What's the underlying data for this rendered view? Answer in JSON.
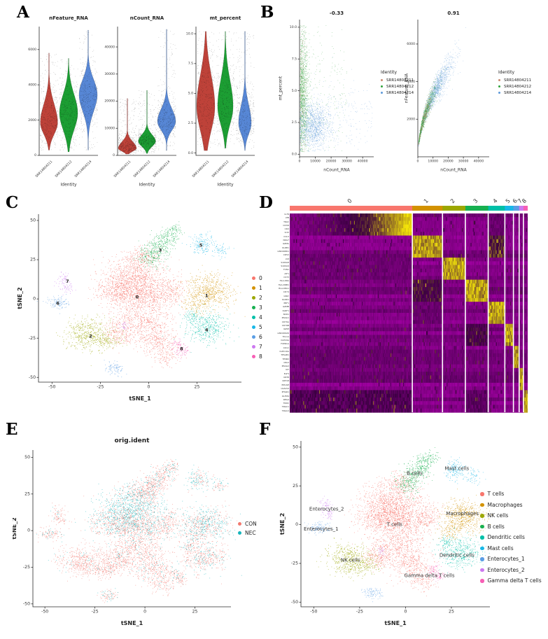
{
  "panel_labels": [
    "A",
    "B",
    "C",
    "D",
    "E",
    "F"
  ],
  "chart_data": [
    {
      "type": "violin",
      "panel": "A",
      "xlabel": "Identity",
      "samples": [
        "SRR14804211",
        "SRR14804212",
        "SRR14804214"
      ],
      "colors": [
        "#BE4239",
        "#1C9E33",
        "#5787D6"
      ],
      "plots": [
        {
          "title": "nFeature_RNA",
          "ylim": [
            0,
            7300
          ],
          "yticks": [
            {
              "v": 0,
              "l": "0"
            },
            {
              "v": 2000,
              "l": "2000"
            },
            {
              "v": 4000,
              "l": "4000"
            },
            {
              "v": 6000,
              "l": "6000"
            }
          ],
          "violins": [
            {
              "mode": 1850,
              "slow": 650,
              "shigh": 1050,
              "min": 300,
              "max": 5800,
              "w": 0.95
            },
            {
              "mode": 2400,
              "slow": 950,
              "shigh": 1050,
              "min": 200,
              "max": 5500,
              "w": 1.0
            },
            {
              "mode": 3450,
              "slow": 950,
              "shigh": 850,
              "min": 300,
              "max": 7100,
              "w": 1.0
            }
          ]
        },
        {
          "title": "nCount_RNA",
          "ylim": [
            0,
            47500
          ],
          "yticks": [
            {
              "v": 0,
              "l": "0"
            },
            {
              "v": 10000,
              "l": "10000"
            },
            {
              "v": 20000,
              "l": "20000"
            },
            {
              "v": 30000,
              "l": "30000"
            },
            {
              "v": 40000,
              "l": "40000"
            }
          ],
          "violins": [
            {
              "mode": 2600,
              "slow": 1100,
              "shigh": 2400,
              "min": 500,
              "max": 21000,
              "w": 1.0
            },
            {
              "mode": 5200,
              "slow": 1900,
              "shigh": 2400,
              "min": 700,
              "max": 24000,
              "w": 0.95
            },
            {
              "mode": 12500,
              "slow": 3200,
              "shigh": 4600,
              "min": 1800,
              "max": 46500,
              "w": 1.0
            }
          ]
        },
        {
          "title": "mt_percent",
          "ylim": [
            -0.2,
            10.6
          ],
          "yticks": [
            {
              "v": 0,
              "l": "0.0"
            },
            {
              "v": 2.5,
              "l": "2.5"
            },
            {
              "v": 5,
              "l": "5.0"
            },
            {
              "v": 7.5,
              "l": "7.5"
            },
            {
              "v": 10,
              "l": "10.0"
            }
          ],
          "violins": [
            {
              "mode": 3.9,
              "slow": 2.0,
              "shigh": 2.6,
              "min": 0.2,
              "max": 10.2,
              "w": 1.0
            },
            {
              "mode": 3.9,
              "slow": 1.5,
              "shigh": 2.2,
              "min": 0.4,
              "max": 10.2,
              "w": 0.85
            },
            {
              "mode": 2.5,
              "slow": 0.9,
              "shigh": 1.5,
              "min": 0.2,
              "max": 10.2,
              "w": 0.7
            }
          ]
        }
      ]
    },
    {
      "type": "scatter",
      "panel": "B",
      "legend": {
        "title": "Identity",
        "items": [
          {
            "label": "SRR14804211",
            "color": "#C98A70"
          },
          {
            "label": "SRR14804212",
            "color": "#2FA33B"
          },
          {
            "label": "SRR14804214",
            "color": "#5E9AD9"
          }
        ]
      },
      "plots": [
        {
          "title": "-0.33",
          "xlabel": "nCount_RNA",
          "ylabel": "mt_percent",
          "xlim": [
            0,
            47000
          ],
          "ylim": [
            -0.2,
            10.6
          ],
          "xticks": [
            {
              "v": 0,
              "l": "0"
            },
            {
              "v": 10000,
              "l": "10000"
            },
            {
              "v": 20000,
              "l": "20000"
            },
            {
              "v": 30000,
              "l": "30000"
            },
            {
              "v": 40000,
              "l": "40000"
            }
          ],
          "yticks": [
            {
              "v": 0,
              "l": "0.0"
            },
            {
              "v": 2.5,
              "l": "2.5"
            },
            {
              "v": 5,
              "l": "5.0"
            },
            {
              "v": 7.5,
              "l": "7.5"
            },
            {
              "v": 10,
              "l": "10.0"
            }
          ],
          "series": [
            {
              "color": "#2FA33B",
              "n": 1400,
              "kind": "col",
              "x": [
                300,
                2500
              ],
              "y": [
                4.6,
                2.6
              ]
            },
            {
              "color": "#5E9AD9",
              "n": 1300,
              "kind": "cloud",
              "cx": 9000,
              "sx": 5200,
              "cy": 2.2,
              "sy": 0.9
            },
            {
              "color": "#5E9AD9",
              "n": 260,
              "kind": "spread",
              "xmax": 46000,
              "y": [
                2.8,
                1.6
              ]
            },
            {
              "color": "#C98A70",
              "n": 220,
              "kind": "col",
              "x": [
                300,
                1900
              ],
              "y": [
                4.5,
                2.8
              ]
            },
            {
              "color": "#2FA33B",
              "n": 200,
              "kind": "spread",
              "xmax": 30000,
              "y": [
                5.0,
                2.5
              ]
            }
          ]
        },
        {
          "title": "0.91",
          "xlabel": "nCount_RNA",
          "ylabel": "nFeature_RNA",
          "xlim": [
            0,
            47000
          ],
          "ylim": [
            0,
            7300
          ],
          "xticks": [
            {
              "v": 0,
              "l": "0"
            },
            {
              "v": 10000,
              "l": "10000"
            },
            {
              "v": 20000,
              "l": "20000"
            },
            {
              "v": 30000,
              "l": "30000"
            },
            {
              "v": 40000,
              "l": "40000"
            }
          ],
          "yticks": [
            {
              "v": 2000,
              "l": "2000"
            },
            {
              "v": 4000,
              "l": "4000"
            },
            {
              "v": 6000,
              "l": "6000"
            }
          ],
          "curve": {
            "a": 33,
            "b": 0.5,
            "noise": 0.09
          },
          "series": [
            {
              "color": "#5E9AD9",
              "n": 1500,
              "cx": 11000,
              "sx": 6000
            },
            {
              "color": "#2FA33B",
              "n": 1100,
              "xlow": true,
              "scale": 5200
            },
            {
              "color": "#C98A70",
              "n": 300,
              "cx": 4500,
              "sx": 2800
            }
          ]
        }
      ]
    },
    {
      "type": "tsne",
      "panel": "C",
      "xlabel": "tSNE_1",
      "ylabel": "tSNE_2",
      "xlim": [
        -57,
        48
      ],
      "ylim": [
        -53,
        54
      ],
      "xticks": [
        -50,
        -25,
        0,
        25
      ],
      "yticks": [
        -50,
        -25,
        0,
        25,
        50
      ],
      "clusters": [
        {
          "id": "0",
          "color": "#F8766D",
          "label": [
            -6,
            1
          ],
          "blobs": [
            [
              -8,
              14,
              8,
              6.5,
              900,
              0.75
            ],
            [
              -14,
              4,
              7,
              5,
              520,
              0.35
            ],
            [
              0,
              2,
              7,
              6,
              560,
              0.25
            ],
            [
              -5,
              -14,
              8,
              5.5,
              520,
              0.12
            ],
            [
              4,
              -26,
              5.5,
              5,
              320,
              0.12
            ],
            [
              -15,
              -22,
              4,
              3.5,
              190,
              0.1
            ],
            [
              -3,
              27,
              5,
              3.5,
              190,
              0.3
            ],
            [
              9,
              -36,
              3.5,
              3.5,
              120,
              0.1
            ],
            [
              12,
              6,
              3.5,
              5,
              170,
              0.2
            ]
          ]
        },
        {
          "id": "1",
          "color": "#D39200",
          "label": [
            30,
            2
          ],
          "blobs": [
            [
              31,
              5,
              6,
              5.5,
              620,
              0.5
            ],
            [
              24,
              -4,
              3,
              3,
              90,
              0.3
            ]
          ]
        },
        {
          "id": "2",
          "color": "#9CA700",
          "label": [
            -30,
            -24
          ],
          "blobs": [
            [
              -31,
              -22,
              6,
              5,
              500,
              0.08
            ],
            [
              -21,
              -27,
              4,
              2.5,
              110,
              0.08
            ]
          ]
        },
        {
          "id": "3",
          "color": "#17B050",
          "label": [
            6,
            31
          ],
          "blobs": [
            [
              1,
              27,
              3.5,
              3.5,
              190,
              0.25
            ],
            [
              6,
              34,
              3.5,
              3.5,
              190,
              0.25
            ],
            [
              10,
              40,
              3,
              3,
              120,
              0.25
            ],
            [
              14,
              44,
              2,
              2,
              50,
              0.25
            ]
          ]
        },
        {
          "id": "4",
          "color": "#00C0A8",
          "label": [
            30,
            -20
          ],
          "blobs": [
            [
              30,
              -18,
              5.5,
              5,
              440,
              0.3
            ],
            [
              22,
              -11,
              2.5,
              2,
              60,
              0.3
            ]
          ]
        },
        {
          "id": "5",
          "color": "#19B8E8",
          "label": [
            27,
            34
          ],
          "blobs": [
            [
              27,
              35,
              2.8,
              3.5,
              160,
              0.5
            ],
            [
              37,
              31,
              2,
              2.2,
              60,
              0.5
            ]
          ]
        },
        {
          "id": "6",
          "color": "#5B9EE5",
          "label": [
            -47,
            -3
          ],
          "blobs": [
            [
              -47,
              -2,
              3,
              2,
              110,
              0.3
            ],
            [
              -18,
              -44,
              2.5,
              2,
              90,
              0.3
            ]
          ]
        },
        {
          "id": "7",
          "color": "#CD79F0",
          "label": [
            -42,
            11
          ],
          "blobs": [
            [
              -44,
              12,
              1.8,
              2.8,
              60,
              0.1
            ],
            [
              -42,
              7,
              1.5,
              2,
              35,
              0.1
            ],
            [
              -13,
              -17,
              1,
              1.7,
              28,
              0.1
            ]
          ]
        },
        {
          "id": "8",
          "color": "#F75FB5",
          "label": [
            17,
            -32
          ],
          "blobs": [
            [
              15,
              -29,
              1.8,
              1.8,
              55,
              0.2
            ],
            [
              18,
              -33,
              1.8,
              1.8,
              55,
              0.2
            ]
          ]
        }
      ]
    },
    {
      "type": "heatmap",
      "panel": "D",
      "col_groups": [
        {
          "id": "0",
          "fraction": 0.515
        },
        {
          "id": "1",
          "fraction": 0.127
        },
        {
          "id": "2",
          "fraction": 0.096
        },
        {
          "id": "3",
          "fraction": 0.096
        },
        {
          "id": "4",
          "fraction": 0.07
        },
        {
          "id": "5",
          "fraction": 0.036
        },
        {
          "id": "6",
          "fraction": 0.024
        },
        {
          "id": "7",
          "fraction": 0.018
        },
        {
          "id": "8",
          "fraction": 0.018
        }
      ],
      "row_labels": [
        "IL7R",
        "LTB",
        "TRAC",
        "CD3D",
        "CD2",
        "IL32",
        "CCL5",
        "NKG7",
        "GZMA",
        "KLRB1",
        "LINC00861",
        "CD52",
        "LYZ",
        "S100A8",
        "S100A9",
        "FCN1",
        "AIF1",
        "CST3",
        "HLA-DRA",
        "HLA-DRB1",
        "HLA-DPA1",
        "CD74",
        "GNLY",
        "KLRD1",
        "PRF1",
        "GZMB",
        "KLRF1",
        "NCR1",
        "MS4A1",
        "CD79A",
        "CD79B",
        "IGHM",
        "LINC00926",
        "TCL1A",
        "CLEC9A",
        "FCER1A",
        "CD1C",
        "CLEC10A",
        "TPSAB1",
        "TPSB2",
        "CPA3",
        "MS4A2",
        "KIT",
        "ELF3",
        "KRT8",
        "KRT18",
        "EPCAM",
        "LGALS4",
        "PHGR1",
        "OLFM4",
        "REG4",
        "TRDC",
        "TRGC1",
        "TRGC2"
      ],
      "scale": {
        "low": "#BE00BE",
        "mid": "#38003E",
        "high": "#F2E20A"
      },
      "extras": [
        [
          3,
          1,
          0.55
        ],
        [
          1,
          4,
          0.6
        ],
        [
          5,
          3,
          0.5
        ],
        [
          8,
          0,
          0.45
        ],
        [
          8,
          3,
          0.4
        ],
        [
          2,
          0,
          0.33
        ],
        [
          6,
          0,
          0.33
        ],
        [
          0,
          4,
          0.35
        ],
        [
          4,
          1,
          0.35
        ]
      ]
    },
    {
      "type": "tsne_group",
      "panel": "E",
      "title": "orig.ident",
      "xlabel": "tSNE_1",
      "ylabel": "tSNE_2",
      "xlim": [
        -56,
        43
      ],
      "ylim": [
        -52,
        55
      ],
      "xticks": [
        -50,
        -25,
        0,
        25
      ],
      "yticks": [
        -50,
        -25,
        0,
        25,
        50
      ],
      "groups": [
        {
          "label": "CON",
          "color": "#F2796F"
        },
        {
          "label": "NEC",
          "color": "#15B5BC"
        }
      ]
    },
    {
      "type": "tsne_named",
      "panel": "F",
      "xlabel": "tSNE_1",
      "ylabel": "tSNE_2",
      "xlim": [
        -57,
        46
      ],
      "ylim": [
        -53,
        54
      ],
      "xticks": [
        -50,
        -25,
        0,
        25
      ],
      "yticks": [
        -50,
        -25,
        0,
        25,
        50
      ],
      "cell_types": [
        {
          "name": "T cells",
          "cluster": 0,
          "label": [
            -6,
            0
          ]
        },
        {
          "name": "Macrophages",
          "cluster": 1,
          "label": [
            31,
            7
          ]
        },
        {
          "name": "NK cells",
          "cluster": 2,
          "label": [
            -30,
            -23
          ]
        },
        {
          "name": "B cells",
          "cluster": 3,
          "label": [
            5,
            33
          ]
        },
        {
          "name": "Dendritic cells",
          "cluster": 4,
          "label": [
            28,
            -20
          ]
        },
        {
          "name": "Mast cells",
          "cluster": 5,
          "label": [
            28,
            36
          ]
        },
        {
          "name": "Enterocytes_1",
          "cluster": 6,
          "label": [
            -46,
            -3
          ]
        },
        {
          "name": "Enterocytes_2",
          "cluster": 7,
          "label": [
            -43,
            10
          ]
        },
        {
          "name": "Gamma delta T cells",
          "cluster": 8,
          "label": [
            13,
            -33
          ]
        }
      ]
    }
  ]
}
